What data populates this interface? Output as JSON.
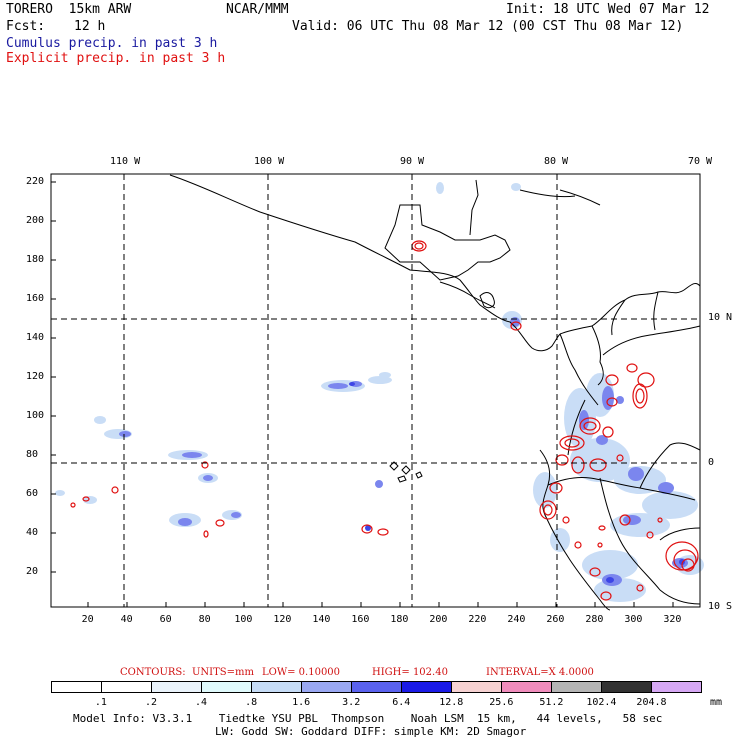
{
  "header": {
    "model": "TORERO  15km ARW",
    "org": "NCAR/MMM",
    "init": "Init: 18 UTC Wed 07 Mar 12",
    "fcst_label": "Fcst:",
    "fcst_value": "12 h",
    "valid": "Valid: 06 UTC Thu 08 Mar 12 (00 CST Thu 08 Mar 12)"
  },
  "legend_lines": {
    "cumulus": "Cumulus precip. in past 3 h",
    "explicit": "Explicit precip. in past 3 h"
  },
  "map": {
    "lon_labels": [
      "110 W",
      "100 W",
      "90 W",
      "80 W",
      "70 W"
    ],
    "lat_labels": [
      "10 N",
      "0",
      "10 S"
    ],
    "y_ticks": [
      "220",
      "200",
      "180",
      "160",
      "140",
      "120",
      "100",
      "80",
      "60",
      "40",
      "20"
    ],
    "x_ticks": [
      "20",
      "40",
      "60",
      "80",
      "100",
      "120",
      "140",
      "160",
      "180",
      "200",
      "220",
      "240",
      "260",
      "280",
      "300",
      "320"
    ]
  },
  "contours_line": {
    "label": "CONTOURS:",
    "units": "UNITS=mm",
    "low": "LOW= 0.10000",
    "high": "HIGH= 102.40",
    "interval": "INTERVAL=X 4.0000"
  },
  "colorbar": {
    "unit": "mm",
    "labels": [
      ".1",
      ".2",
      ".4",
      ".8",
      "1.6",
      "3.2",
      "6.4",
      "12.8",
      "25.6",
      "51.2",
      "102.4",
      "204.8"
    ],
    "colors": [
      "#ffffff",
      "#ffffff",
      "#eaf3fb",
      "#e0fafc",
      "#c6dcf6",
      "#9aa8f2",
      "#5a62ee",
      "#1a1ae6",
      "#f6d2d2",
      "#f08cbc",
      "#b4b4b4",
      "#323232",
      "#d6a8f4"
    ]
  },
  "footer": {
    "line1": "Model Info: V3.3.1    Tiedtke YSU PBL  Thompson    Noah LSM  15 km,   44 levels,   58 sec",
    "line2": "LW: Godd SW: Goddard DIFF: simple KM: 2D Smagor"
  }
}
